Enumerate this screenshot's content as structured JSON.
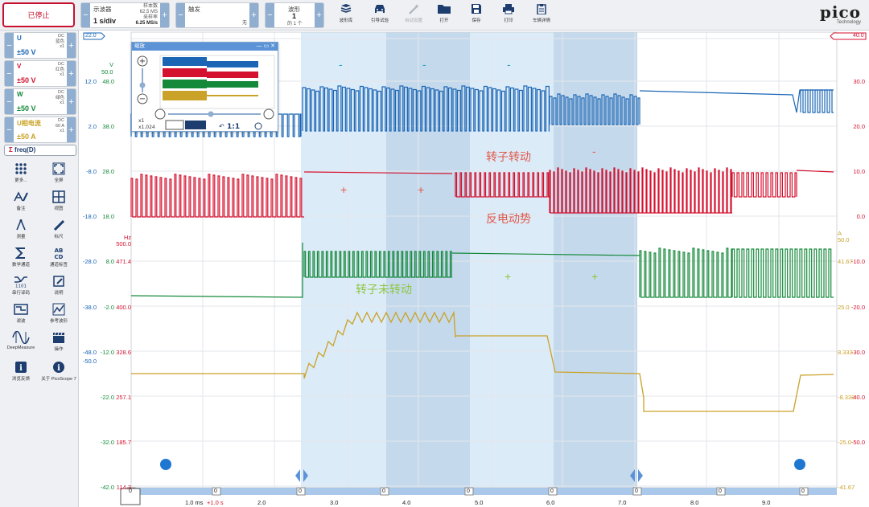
{
  "toolbar": {
    "stop_label": "已停止",
    "scope": {
      "title": "示波器",
      "timebase": "1 s/div",
      "samples_label": "样本数",
      "samples": "62.5 MS",
      "rate_label": "采样率",
      "rate": "6.25 MS/s"
    },
    "trigger": {
      "title": "触发",
      "mode": "无"
    },
    "waveform": {
      "title": "波形",
      "value": "1",
      "of": "的 1 个"
    },
    "buttons": [
      {
        "label": "波形库",
        "icon": "library-icon"
      },
      {
        "label": "引导试验",
        "icon": "car-icon"
      },
      {
        "label": "自动设置",
        "icon": "wand-icon",
        "enabled": false
      },
      {
        "label": "打开",
        "icon": "folder-icon"
      },
      {
        "label": "保存",
        "icon": "save-icon"
      },
      {
        "label": "打印",
        "icon": "print-icon"
      },
      {
        "label": "车辆详情",
        "icon": "clipboard-icon"
      }
    ],
    "logo": {
      "name": "pico",
      "sub": "Technology"
    }
  },
  "channels": [
    {
      "name": "U",
      "coupling": "DC",
      "color_name": "蓝色",
      "probe": "x1",
      "range": "±50 V",
      "color": "#1a66b5"
    },
    {
      "name": "V",
      "coupling": "DC",
      "color_name": "红色",
      "probe": "x1",
      "range": "±50 V",
      "color": "#d4122f"
    },
    {
      "name": "W",
      "coupling": "DC",
      "color_name": "绿色",
      "probe": "x1",
      "range": "±50 V",
      "color": "#14893a"
    },
    {
      "name": "U相电流",
      "coupling": "DC",
      "color_name": "60 A",
      "probe": "x1",
      "range": "±50 A",
      "color": "#c9a227"
    }
  ],
  "freq_label": "freq(D)",
  "tools": [
    {
      "label": "更多...",
      "icon": "grid-icon"
    },
    {
      "label": "全屏",
      "icon": "fullscreen-icon"
    },
    {
      "label": "备注",
      "icon": "notes-icon"
    },
    {
      "label": "视图",
      "icon": "view-icon"
    },
    {
      "label": "测量",
      "icon": "compass-icon"
    },
    {
      "label": "标尺",
      "icon": "ruler-icon"
    },
    {
      "label": "数学通道",
      "icon": "sigma-icon"
    },
    {
      "label": "通道标签",
      "icon": "abcd-icon"
    },
    {
      "label": "串行译码",
      "icon": "serial-icon"
    },
    {
      "label": "说明",
      "icon": "note-icon"
    },
    {
      "label": "滤波",
      "icon": "filter-icon"
    },
    {
      "label": "参考波形",
      "icon": "reference-icon"
    },
    {
      "label": "DeepMeasure",
      "icon": "deepmeasure-icon"
    },
    {
      "label": "操作",
      "icon": "clapper-icon"
    },
    {
      "label": "浏览反馈",
      "icon": "info-icon"
    },
    {
      "label": "关于 PicoScope 7",
      "icon": "about-icon"
    }
  ],
  "axes": {
    "blue_axis": [
      "12.0",
      "2.0",
      "-8.0",
      "-18.0",
      "-28.0",
      "-38.0",
      "-48.0",
      "-50.0"
    ],
    "left_top_values": {
      "v": "V",
      "v50": "50.0"
    },
    "green_axis": [
      "48.0",
      "38.0",
      "28.0",
      "18.0",
      "8.0",
      "-2.0",
      "-12.0",
      "-22.0",
      "-32.0",
      "-42.0"
    ],
    "hz_axis": {
      "unit": "Hz",
      "values": [
        "500.0",
        "471.4",
        "400.0",
        "328.6",
        "257.1",
        "185.7",
        "114.3"
      ]
    },
    "red_axis": [
      "40.0",
      "30.0",
      "20.0",
      "10.0",
      "0.0",
      "-10.0",
      "-20.0",
      "-30.0",
      "-40.0",
      "-50.0"
    ],
    "amp_axis": {
      "unit": "A",
      "values": [
        "50.0",
        "41.67",
        "25.0",
        "8.333",
        "-8.333",
        "-25.0",
        "-41.67"
      ]
    },
    "time_labels": [
      "1.0 ms",
      "2.0",
      "3.0",
      "4.0",
      "5.0",
      "6.0",
      "7.0",
      "8.0",
      "9.0"
    ],
    "time_extra": "+1.0 s",
    "left_badge": "22.0",
    "right_badge": "40.0",
    "zero_marker": "0"
  },
  "annotations": {
    "rotor_turning": "转子转动",
    "back_emf": "反电动势",
    "rotor_not_turning": "转子未转动",
    "minus": "-",
    "plus": "+"
  },
  "zoom_window": {
    "title": "缩放",
    "ratio": "1:1",
    "x_scale": "x1",
    "y_scale": "x1,024"
  }
}
